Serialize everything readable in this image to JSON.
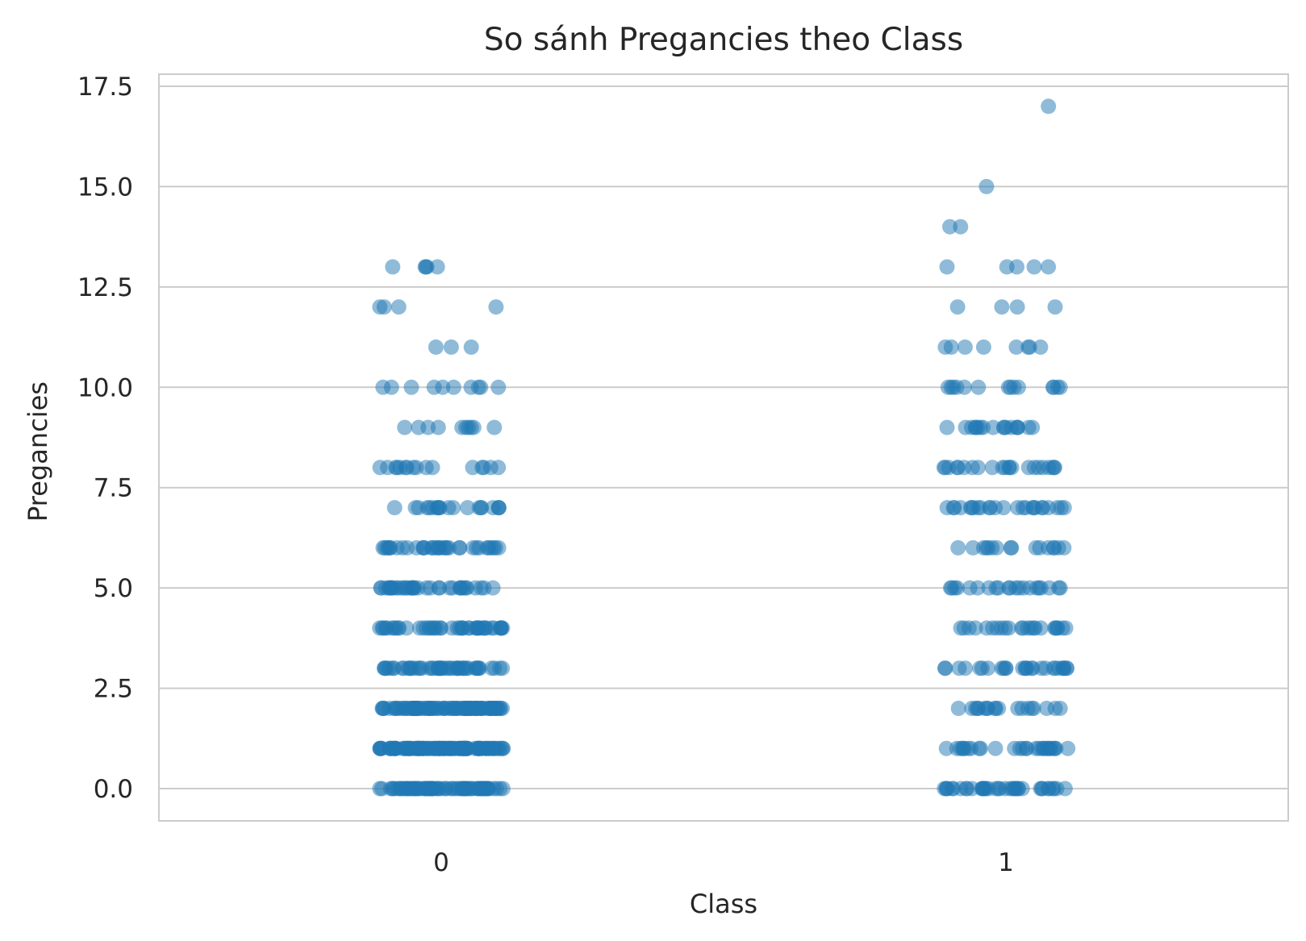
{
  "chart_data": {
    "type": "scatter",
    "title": "So sánh Pregancies theo Class",
    "xlabel": "Class",
    "ylabel": "Pregancies",
    "categories": [
      "0",
      "1"
    ],
    "ylim": [
      -0.9,
      17.8
    ],
    "y_ticks": [
      0.0,
      2.5,
      5.0,
      7.5,
      10.0,
      12.5,
      15.0,
      17.5
    ],
    "y_tick_labels": [
      "0.0",
      "2.5",
      "5.0",
      "7.5",
      "10.0",
      "12.5",
      "15.0",
      "17.5"
    ],
    "grid": "horizontal",
    "point_color": "#1f77b4",
    "series": [
      {
        "category": "0",
        "values_counts": {
          "0": 73,
          "1": 106,
          "2": 84,
          "3": 48,
          "4": 45,
          "5": 36,
          "6": 34,
          "7": 20,
          "8": 16,
          "9": 10,
          "10": 10,
          "11": 3,
          "12": 4,
          "13": 5
        }
      },
      {
        "category": "1",
        "values_counts": {
          "0": 38,
          "1": 29,
          "2": 19,
          "3": 27,
          "4": 23,
          "5": 21,
          "6": 16,
          "7": 25,
          "8": 22,
          "9": 18,
          "10": 14,
          "11": 8,
          "12": 4,
          "13": 5,
          "14": 2,
          "15": 1,
          "17": 1
        }
      }
    ]
  }
}
